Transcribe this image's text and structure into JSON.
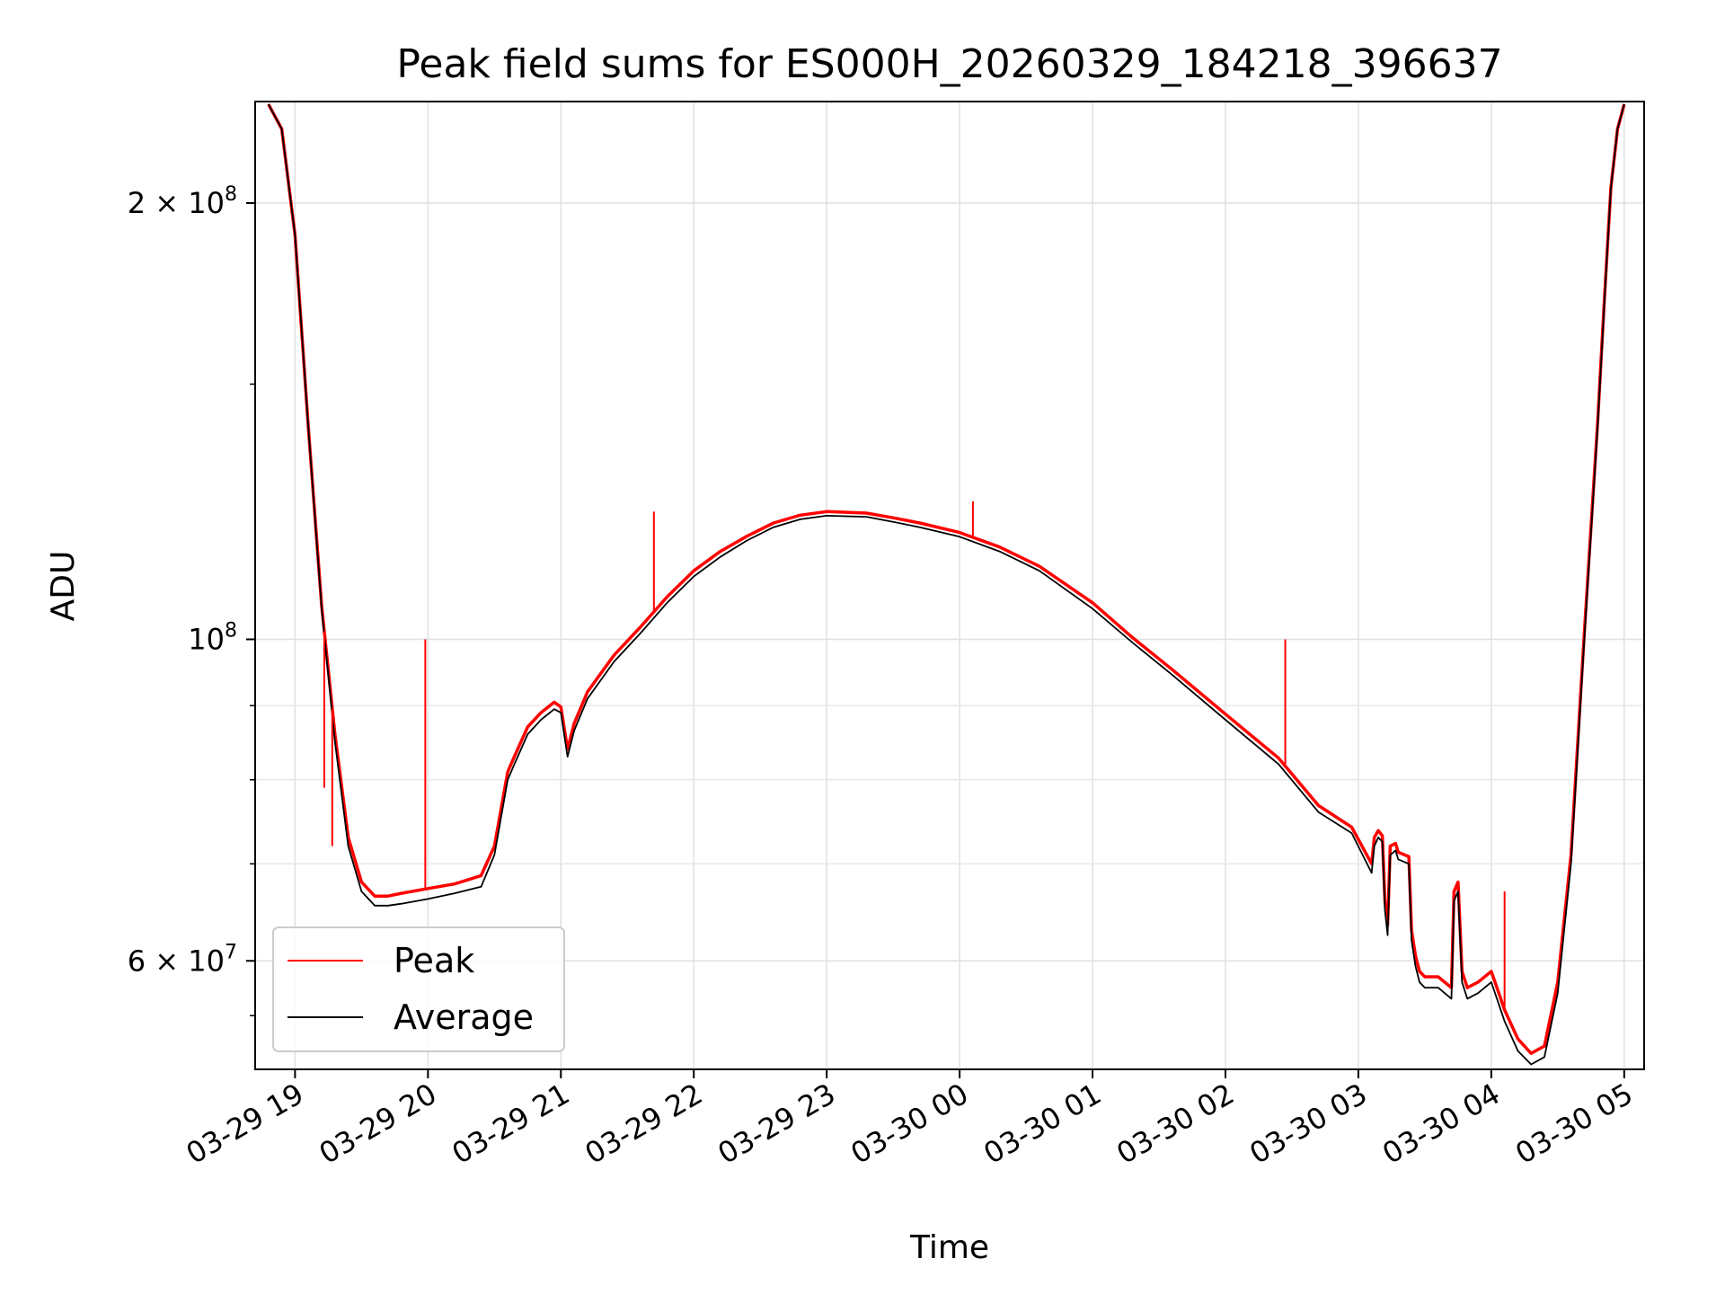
{
  "chart_data": {
    "type": "line",
    "title": "Peak field sums for ES000H_20260329_184218_396637",
    "xlabel": "Time",
    "ylabel": "ADU",
    "yscale": "log",
    "ylim": [
      50500000,
      235000000
    ],
    "xlim": [
      -0.3,
      10.15
    ],
    "grid": true,
    "legend_position": "lower-left",
    "x_unit": "hours since 03-29 19:00",
    "xticks": [
      {
        "value": 0,
        "label": "03-29 19"
      },
      {
        "value": 1,
        "label": "03-29 20"
      },
      {
        "value": 2,
        "label": "03-29 21"
      },
      {
        "value": 3,
        "label": "03-29 22"
      },
      {
        "value": 4,
        "label": "03-29 23"
      },
      {
        "value": 5,
        "label": "03-30 00"
      },
      {
        "value": 6,
        "label": "03-30 01"
      },
      {
        "value": 7,
        "label": "03-30 02"
      },
      {
        "value": 8,
        "label": "03-30 03"
      },
      {
        "value": 9,
        "label": "03-30 04"
      },
      {
        "value": 10,
        "label": "03-30 05"
      }
    ],
    "yticks": [
      {
        "value": 200000000,
        "base": "2 × 10",
        "exp": "8"
      },
      {
        "value": 100000000,
        "base": "10",
        "exp": "8"
      },
      {
        "value": 60000000,
        "base": "6 × 10",
        "exp": "7"
      }
    ],
    "yminor": [
      70000000,
      80000000,
      90000000
    ],
    "series": [
      {
        "name": "Average",
        "color": "#000000",
        "x": [
          -0.2,
          -0.1,
          0,
          0.1,
          0.2,
          0.3,
          0.4,
          0.5,
          0.6,
          0.7,
          0.8,
          1.0,
          1.2,
          1.4,
          1.5,
          1.6,
          1.65,
          1.75,
          1.85,
          1.95,
          2.0,
          2.05,
          2.1,
          2.2,
          2.4,
          2.6,
          2.8,
          3.0,
          3.2,
          3.4,
          3.6,
          3.8,
          4.0,
          4.3,
          4.5,
          4.7,
          5.0,
          5.3,
          5.6,
          6.0,
          6.3,
          6.6,
          7.0,
          7.4,
          7.7,
          7.95,
          8.1,
          8.12,
          8.15,
          8.18,
          8.2,
          8.22,
          8.24,
          8.28,
          8.3,
          8.38,
          8.4,
          8.43,
          8.46,
          8.5,
          8.6,
          8.7,
          8.72,
          8.75,
          8.78,
          8.82,
          8.9,
          9.0,
          9.1,
          9.2,
          9.3,
          9.4,
          9.5,
          9.6,
          9.7,
          9.8,
          9.85,
          9.9,
          9.95,
          10.0
        ],
        "y": [
          234000000,
          225000000,
          190000000,
          140000000,
          105000000,
          85000000,
          72000000,
          67000000,
          65500000,
          65500000,
          65700000,
          66200000,
          66800000,
          67500000,
          71000000,
          80000000,
          82000000,
          86000000,
          88000000,
          89500000,
          89000000,
          83000000,
          86500000,
          91000000,
          96500000,
          101000000,
          106000000,
          110500000,
          114000000,
          117000000,
          119500000,
          121000000,
          121700000,
          121500000,
          120500000,
          119500000,
          117700000,
          115000000,
          111500000,
          105000000,
          99500000,
          94500000,
          88000000,
          82000000,
          76000000,
          73500000,
          69000000,
          72000000,
          73000000,
          72500000,
          65000000,
          62500000,
          71000000,
          71500000,
          70500000,
          70000000,
          62000000,
          59500000,
          58000000,
          57500000,
          57500000,
          56500000,
          66000000,
          67000000,
          58000000,
          56500000,
          57000000,
          58000000,
          54500000,
          52000000,
          50900000,
          51500000,
          57000000,
          70000000,
          100000000,
          140000000,
          170000000,
          205000000,
          225000000,
          234000000
        ]
      },
      {
        "name": "Peak",
        "color": "#ff0000",
        "x": [
          -0.2,
          -0.1,
          0,
          0.1,
          0.2,
          0.3,
          0.4,
          0.5,
          0.6,
          0.7,
          0.8,
          1.0,
          1.2,
          1.4,
          1.5,
          1.6,
          1.65,
          1.75,
          1.85,
          1.95,
          2.0,
          2.05,
          2.1,
          2.2,
          2.4,
          2.6,
          2.8,
          3.0,
          3.2,
          3.4,
          3.6,
          3.8,
          4.0,
          4.3,
          4.5,
          4.7,
          5.0,
          5.3,
          5.6,
          6.0,
          6.3,
          6.6,
          7.0,
          7.4,
          7.7,
          7.95,
          8.1,
          8.12,
          8.15,
          8.18,
          8.2,
          8.22,
          8.24,
          8.28,
          8.3,
          8.38,
          8.4,
          8.43,
          8.46,
          8.5,
          8.6,
          8.7,
          8.72,
          8.75,
          8.78,
          8.82,
          8.9,
          9.0,
          9.1,
          9.2,
          9.3,
          9.4,
          9.5,
          9.6,
          9.7,
          9.8,
          9.85,
          9.9,
          9.95,
          10.0
        ],
        "y": [
          234000000,
          225000000,
          190000000,
          140000000,
          105500000,
          86000000,
          73000000,
          68000000,
          66500000,
          66500000,
          66800000,
          67300000,
          67800000,
          68700000,
          72000000,
          81000000,
          83000000,
          87000000,
          89000000,
          90500000,
          89800000,
          84000000,
          87500000,
          92000000,
          97500000,
          102000000,
          107000000,
          111500000,
          115000000,
          117800000,
          120300000,
          121800000,
          122500000,
          122200000,
          121300000,
          120300000,
          118500000,
          115800000,
          112300000,
          106000000,
          100300000,
          95300000,
          88800000,
          82800000,
          76800000,
          74200000,
          70000000,
          73000000,
          73800000,
          73200000,
          66000000,
          63500000,
          72000000,
          72300000,
          71300000,
          70800000,
          63000000,
          60500000,
          59000000,
          58500000,
          58500000,
          57500000,
          67000000,
          68000000,
          59000000,
          57500000,
          58000000,
          59000000,
          55500000,
          53000000,
          51800000,
          52400000,
          58000000,
          71000000,
          101000000,
          141000000,
          171000000,
          205000000,
          225000000,
          234000000
        ]
      }
    ],
    "spikes": [
      {
        "x": 0.22,
        "y": 79000000
      },
      {
        "x": 0.28,
        "y": 72000000
      },
      {
        "x": 0.98,
        "y": 100000000
      },
      {
        "x": 2.7,
        "y": 122500000
      },
      {
        "x": 5.1,
        "y": 124500000
      },
      {
        "x": 7.45,
        "y": 100000000
      },
      {
        "x": 9.1,
        "y": 67000000
      }
    ],
    "legend": [
      {
        "label": "Peak",
        "color": "#ff0000"
      },
      {
        "label": "Average",
        "color": "#000000"
      }
    ]
  }
}
